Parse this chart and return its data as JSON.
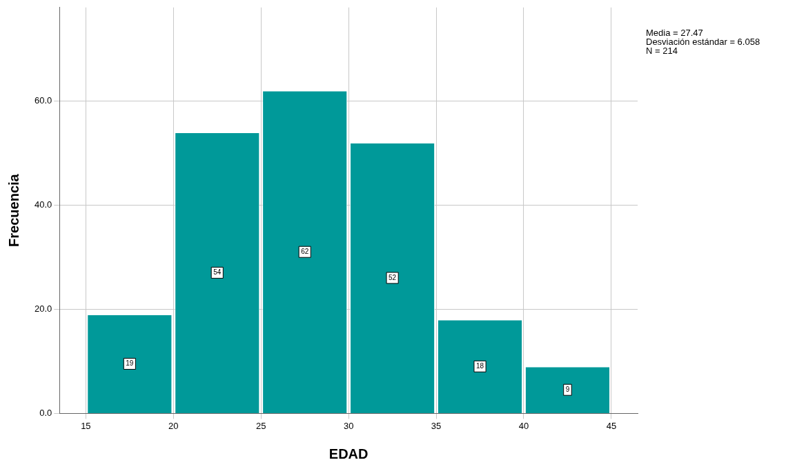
{
  "chart_data": {
    "type": "histogram",
    "xlabel": "EDAD",
    "ylabel": "Frecuencia",
    "bins": [
      15,
      20,
      25,
      30,
      35,
      40,
      45
    ],
    "values": [
      19,
      54,
      62,
      52,
      18,
      9
    ],
    "color": "#009999",
    "xlim": [
      13.5,
      46.5
    ],
    "xticks": [
      15,
      20,
      25,
      30,
      35,
      40,
      45
    ],
    "ylim": [
      0,
      78
    ],
    "yticks": [
      {
        "value": 0,
        "label": "0.0"
      },
      {
        "value": 20,
        "label": "20.0"
      },
      {
        "value": 40,
        "label": "40.0"
      },
      {
        "value": 60,
        "label": "60.0"
      }
    ],
    "grid": true,
    "legend": false,
    "data_labels": true,
    "annotations": [
      "Media = 27.47",
      "Desviación estándar = 6.058",
      "N = 214"
    ]
  }
}
